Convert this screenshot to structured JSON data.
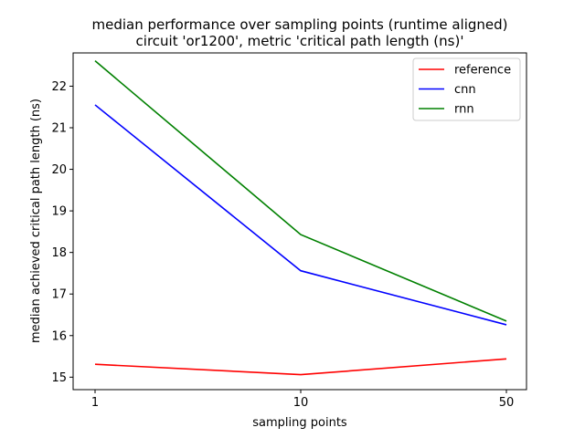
{
  "chart_data": {
    "type": "line",
    "title_line1": "median performance over sampling points (runtime aligned)",
    "title_line2": "circuit 'or1200', metric 'critical path length (ns)'",
    "xlabel": "sampling points",
    "ylabel": "median achieved critical path length (ns)",
    "categories": [
      "1",
      "10",
      "50"
    ],
    "ylim": [
      14.7,
      22.8
    ],
    "yticks": [
      "15",
      "16",
      "17",
      "18",
      "19",
      "20",
      "21",
      "22"
    ],
    "legend_position": "top-right",
    "series": [
      {
        "name": "reference",
        "color": "#ff0000",
        "values": [
          15.31,
          15.06,
          15.44
        ]
      },
      {
        "name": "cnn",
        "color": "#0000ff",
        "values": [
          21.55,
          17.56,
          16.26
        ]
      },
      {
        "name": "rnn",
        "color": "#008000",
        "values": [
          22.61,
          18.43,
          16.35
        ]
      }
    ]
  }
}
